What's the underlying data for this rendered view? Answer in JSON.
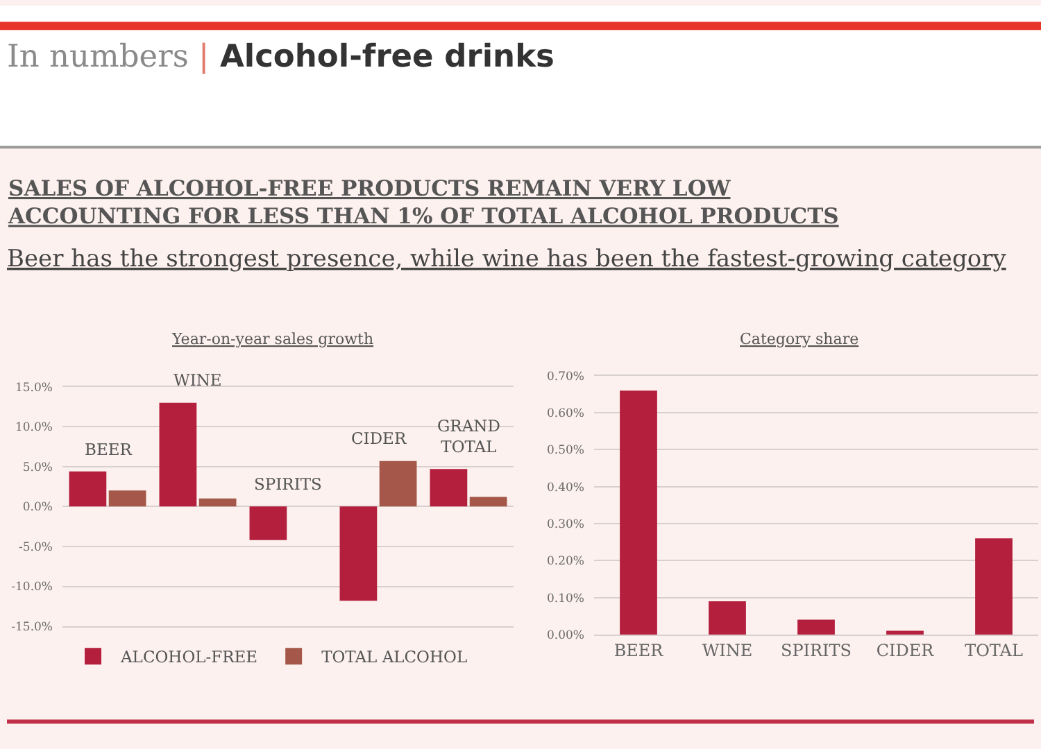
{
  "chart_data": [
    {
      "type": "other",
      "title": "In numbers | Alcohol-free drinks",
      "subtitle": "SALES OF ALCOHOL-FREE PRODUCTS REMAIN VERY LOW\nACCOUNTING FOR LESS THAN 1% OF TOTAL ALCOHOL PRODUCTS",
      "annotations": [
        "Beer has the strongest presence, while wine has been the fastest-growing category"
      ]
    },
    {
      "type": "bar",
      "title": "Year-on-year sales growth",
      "categories": [
        "BEER",
        "WINE",
        "SPIRITS",
        "CIDER",
        "GRAND TOTAL"
      ],
      "series": [
        {
          "name": "ALCOHOL-FREE",
          "color": "#b51f3e",
          "values": [
            4.4,
            13.0,
            -4.2,
            -11.8,
            4.7
          ]
        },
        {
          "name": "TOTAL ALCOHOL",
          "color": "#a5584a",
          "values": [
            2.0,
            1.0,
            0,
            5.7,
            1.2
          ]
        }
      ],
      "ylim": [
        -15,
        15
      ],
      "yticks": [
        {
          "value": -15,
          "label": "-15.0%"
        },
        {
          "value": -10,
          "label": "-10.0%"
        },
        {
          "value": -5,
          "label": "-5.0%"
        },
        {
          "value": 0,
          "label": "0.0%"
        },
        {
          "value": 5,
          "label": "5.0%"
        },
        {
          "value": 10,
          "label": "10.0%"
        },
        {
          "value": 15,
          "label": "15.0%"
        }
      ],
      "grid": "y",
      "legend": "bottom"
    },
    {
      "type": "bar",
      "title": "Category share",
      "categories": [
        "BEER",
        "WINE",
        "SPIRITS",
        "CIDER",
        "TOTAL"
      ],
      "values": [
        0.66,
        0.09,
        0.04,
        0.01,
        0.26
      ],
      "color": "#b51f3e",
      "ylim": [
        0,
        0.7
      ],
      "yticks": [
        {
          "value": 0,
          "label": "0.00%"
        },
        {
          "value": 0.1,
          "label": "0.10%"
        },
        {
          "value": 0.2,
          "label": "0.20%"
        },
        {
          "value": 0.3,
          "label": "0.30%"
        },
        {
          "value": 0.4,
          "label": "0.40%"
        },
        {
          "value": 0.5,
          "label": "0.50%"
        },
        {
          "value": 0.6,
          "label": "0.60%"
        },
        {
          "value": 0.7,
          "label": "0.70%"
        }
      ],
      "grid": "y"
    }
  ]
}
